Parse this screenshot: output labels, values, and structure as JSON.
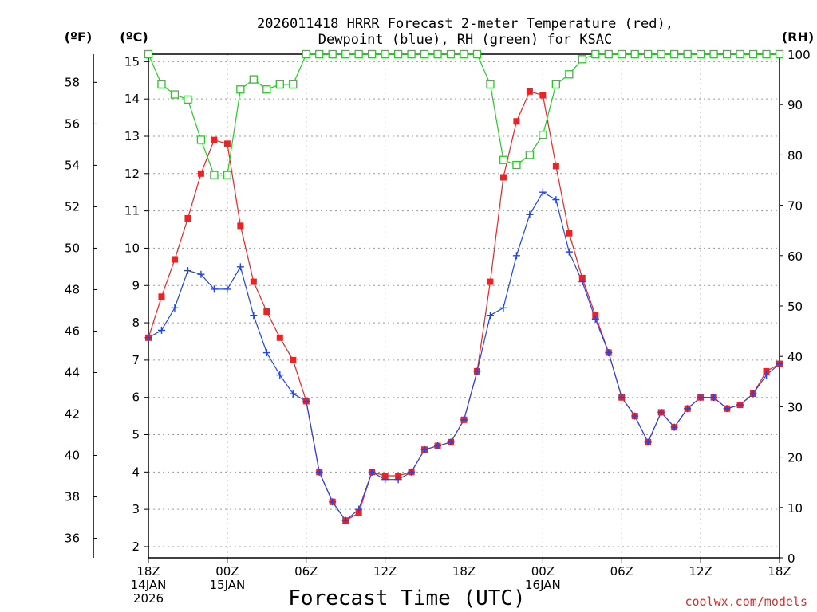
{
  "chart_data": {
    "type": "line",
    "title_line1": "2026011418 HRRR Forecast 2-meter Temperature (red),",
    "title_line2": "Dewpoint (blue), RH (green) for KSAC",
    "xlabel": "Forecast Time (UTC)",
    "credit": "coolwx.com/models",
    "unit_f": "(ºF)",
    "unit_c": "(ºC)",
    "unit_rh": "(RH)",
    "xlim": [
      0,
      48
    ],
    "ylim_c": [
      1.7,
      15.2
    ],
    "ylim_rh": [
      0,
      100
    ],
    "x_ticks": [
      {
        "x": 0,
        "lines": [
          "18Z",
          "14JAN",
          "2026"
        ]
      },
      {
        "x": 6,
        "lines": [
          "00Z",
          "15JAN"
        ]
      },
      {
        "x": 12,
        "lines": [
          "06Z"
        ]
      },
      {
        "x": 18,
        "lines": [
          "12Z"
        ]
      },
      {
        "x": 24,
        "lines": [
          "18Z"
        ]
      },
      {
        "x": 30,
        "lines": [
          "00Z",
          "16JAN"
        ]
      },
      {
        "x": 36,
        "lines": [
          "06Z"
        ]
      },
      {
        "x": 42,
        "lines": [
          "12Z"
        ]
      },
      {
        "x": 48,
        "lines": [
          "18Z"
        ]
      }
    ],
    "y_ticks_c": [
      2,
      3,
      4,
      5,
      6,
      7,
      8,
      9,
      10,
      11,
      12,
      13,
      14,
      15
    ],
    "y_ticks_f": [
      36,
      38,
      40,
      42,
      44,
      46,
      48,
      50,
      52,
      54,
      56,
      58
    ],
    "y_ticks_rh": [
      0,
      10,
      20,
      30,
      40,
      50,
      60,
      70,
      80,
      90,
      100
    ],
    "series": [
      {
        "name": "Temperature",
        "axis": "c",
        "color": "#ee2222",
        "marker": "filled-square",
        "values": [
          7.6,
          8.7,
          9.7,
          10.8,
          12.0,
          12.9,
          12.8,
          10.6,
          9.1,
          8.3,
          7.6,
          7.0,
          5.9,
          4.0,
          3.2,
          2.7,
          2.9,
          4.0,
          3.9,
          3.9,
          4.0,
          4.6,
          4.7,
          4.8,
          5.4,
          6.7,
          9.1,
          11.9,
          13.4,
          14.2,
          14.1,
          12.2,
          10.4,
          9.2,
          8.2,
          7.2,
          6.0,
          5.5,
          4.8,
          5.6,
          5.2,
          5.7,
          6.0,
          6.0,
          5.7,
          5.8,
          6.1,
          6.7,
          6.9
        ]
      },
      {
        "name": "Dewpoint",
        "axis": "c",
        "color": "#2244ee",
        "marker": "plus",
        "values": [
          7.6,
          7.8,
          8.4,
          9.4,
          9.3,
          8.9,
          8.9,
          9.5,
          8.2,
          7.2,
          6.6,
          6.1,
          5.9,
          4.0,
          3.2,
          2.7,
          3.0,
          4.0,
          3.8,
          3.8,
          4.0,
          4.6,
          4.7,
          4.8,
          5.4,
          6.7,
          8.2,
          8.4,
          9.8,
          10.9,
          11.5,
          11.3,
          9.9,
          9.1,
          8.1,
          7.2,
          6.0,
          5.5,
          4.8,
          5.6,
          5.2,
          5.7,
          6.0,
          6.0,
          5.7,
          5.8,
          6.1,
          6.6,
          6.9
        ]
      },
      {
        "name": "RH",
        "axis": "rh",
        "color": "#22cc22",
        "marker": "open-square",
        "values": [
          100,
          94,
          92,
          91,
          83,
          76,
          76,
          93,
          95,
          93,
          94,
          94,
          100,
          100,
          100,
          100,
          100,
          100,
          100,
          100,
          100,
          100,
          100,
          100,
          100,
          100,
          94,
          79,
          78,
          80,
          84,
          94,
          96,
          99,
          100,
          100,
          100,
          100,
          100,
          100,
          100,
          100,
          100,
          100,
          100,
          100,
          100,
          100,
          100
        ]
      }
    ]
  }
}
